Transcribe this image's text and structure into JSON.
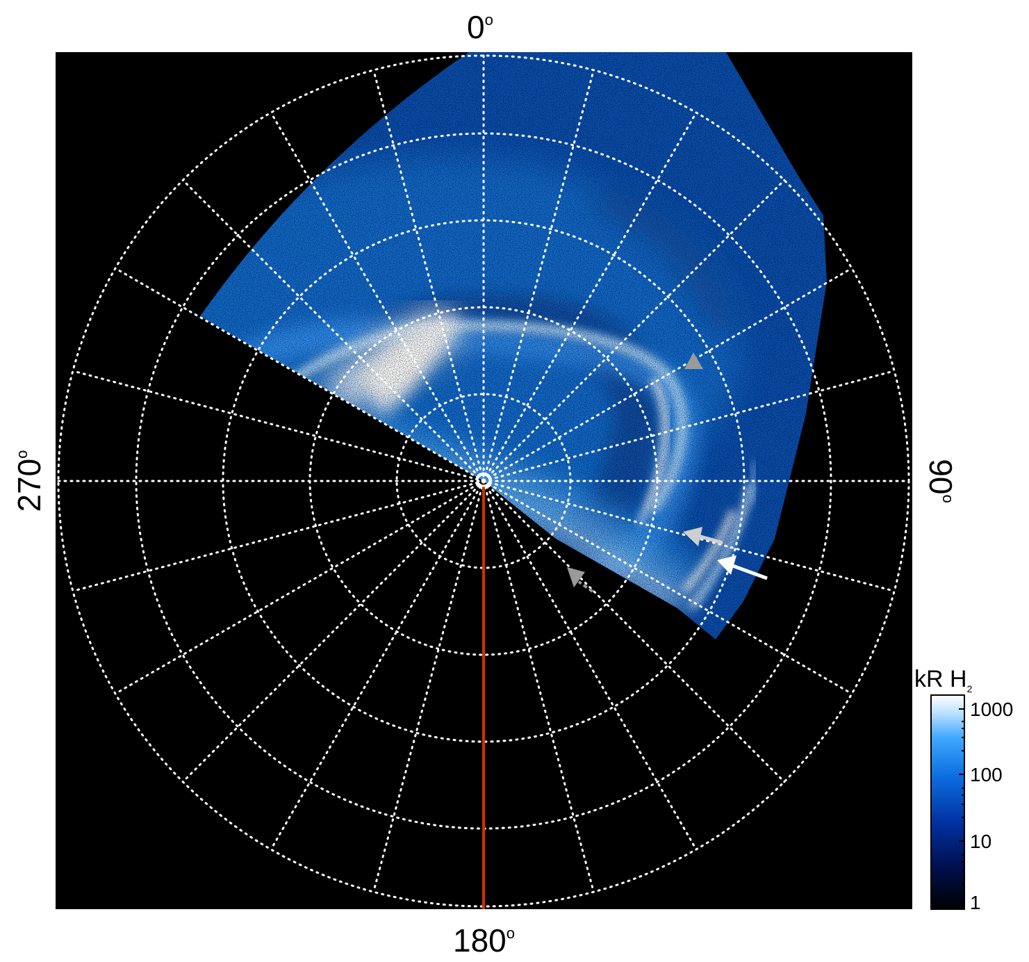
{
  "axis_labels": {
    "top": "0",
    "right": "90",
    "bottom": "180",
    "left": "270",
    "degree_symbol": "o"
  },
  "colorbar": {
    "title": "kR H",
    "title_subscript": "2",
    "ticks": [
      "1",
      "10",
      "100",
      "1000"
    ],
    "scale": "log",
    "colors": [
      "#000000",
      "#001a6e",
      "#0044cc",
      "#1a8cff",
      "#bfe3ff",
      "#ffffff"
    ]
  },
  "colors": {
    "background": "#000000",
    "grid": "#ffffff",
    "meridian_line": "#cc3300",
    "emission_dim": "#0a4fb0",
    "emission_mid": "#1e8cf0",
    "emission_bright": "#ffffff",
    "arrow_white": "#ffffff",
    "arrow_light_grey": "#cfcfcf",
    "arrow_grey": "#9a9a9a"
  },
  "image": {
    "type": "polar projection of auroral UV emission",
    "grid": "on",
    "arrows": 4
  }
}
